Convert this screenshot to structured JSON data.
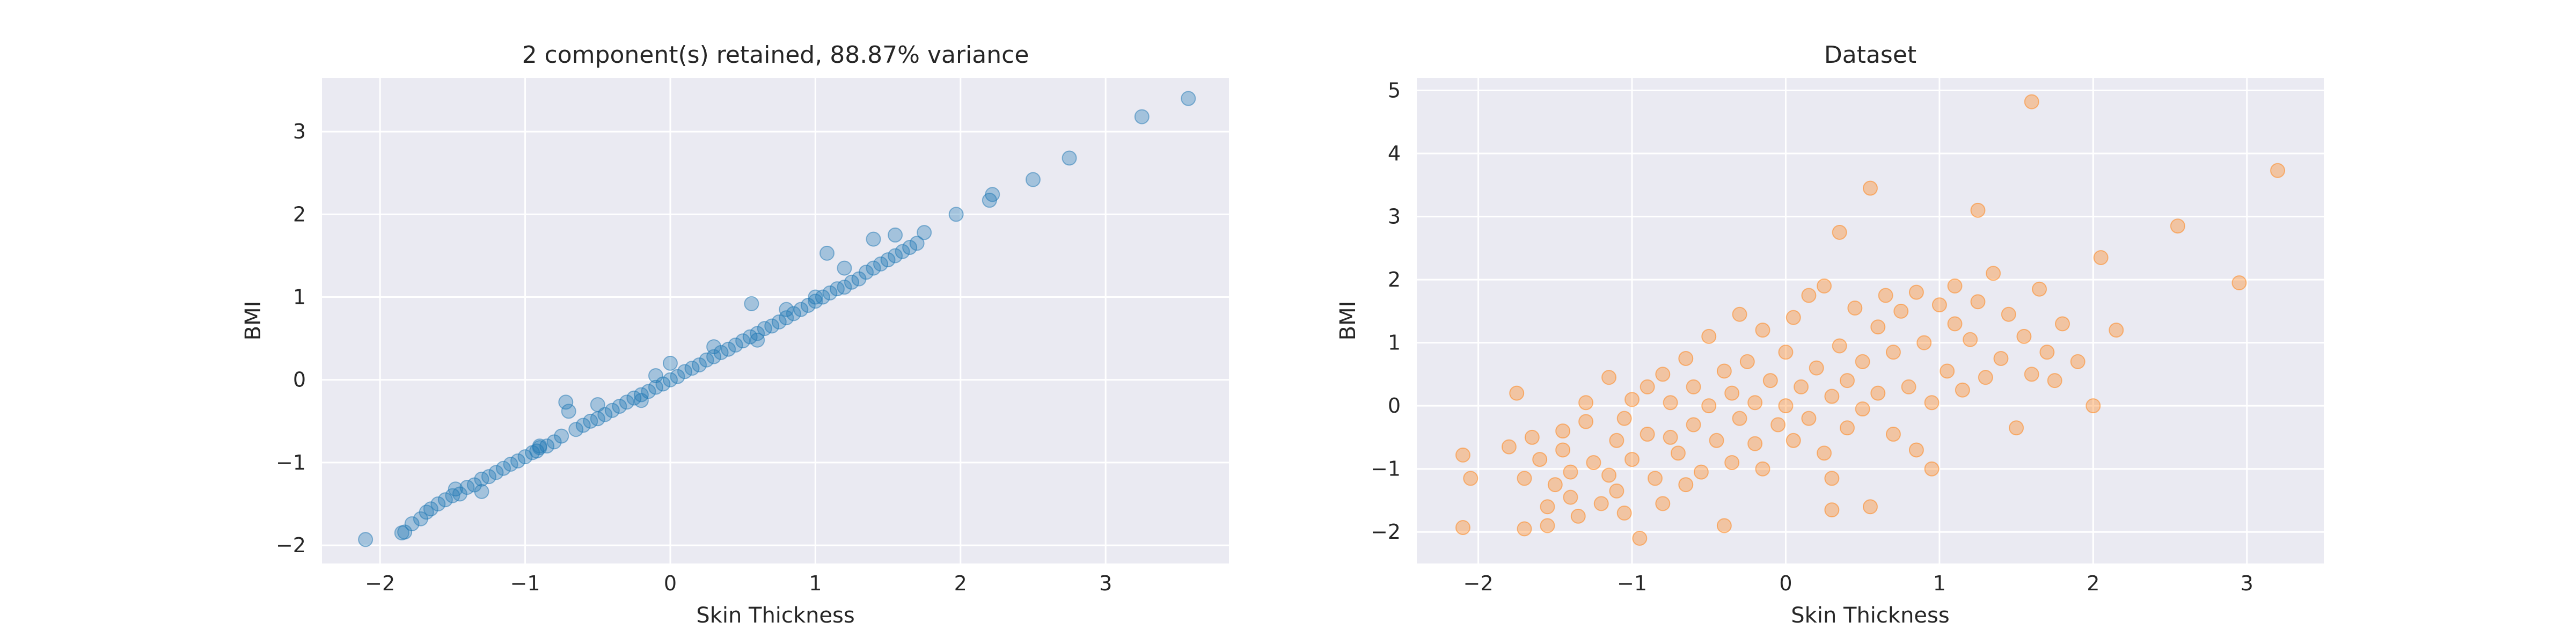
{
  "chart_data": [
    {
      "type": "scatter",
      "title": "2 component(s) retained, 88.87% variance",
      "xlabel": "Skin Thickness",
      "ylabel": "BMI",
      "xlim": [
        -2.4,
        3.85
      ],
      "ylim": [
        -2.22,
        3.65
      ],
      "xticks": [
        -2,
        -1,
        0,
        1,
        2,
        3
      ],
      "yticks": [
        -2,
        -1,
        0,
        1,
        2,
        3
      ],
      "xtick_labels": [
        "−2",
        "−1",
        "0",
        "1",
        "2",
        "3"
      ],
      "ytick_labels": [
        "−2",
        "−1",
        "0",
        "1",
        "2",
        "3"
      ],
      "grid": true,
      "color": "#1f77b4",
      "alpha": 0.35,
      "points": [
        [
          -2.1,
          -1.93
        ],
        [
          -1.85,
          -1.85
        ],
        [
          -1.83,
          -1.84
        ],
        [
          -1.78,
          -1.74
        ],
        [
          -1.72,
          -1.68
        ],
        [
          -1.68,
          -1.6
        ],
        [
          -1.65,
          -1.56
        ],
        [
          -1.6,
          -1.5
        ],
        [
          -1.55,
          -1.45
        ],
        [
          -1.5,
          -1.4
        ],
        [
          -1.48,
          -1.32
        ],
        [
          -1.45,
          -1.38
        ],
        [
          -1.4,
          -1.3
        ],
        [
          -1.35,
          -1.27
        ],
        [
          -1.3,
          -1.2
        ],
        [
          -1.25,
          -1.17
        ],
        [
          -1.2,
          -1.12
        ],
        [
          -1.15,
          -1.07
        ],
        [
          -1.1,
          -1.02
        ],
        [
          -1.05,
          -0.98
        ],
        [
          -1.0,
          -0.93
        ],
        [
          -0.95,
          -0.88
        ],
        [
          -0.92,
          -0.86
        ],
        [
          -0.9,
          -0.8
        ],
        [
          -0.85,
          -0.8
        ],
        [
          -0.8,
          -0.75
        ],
        [
          -0.75,
          -0.68
        ],
        [
          -0.72,
          -0.27
        ],
        [
          -0.7,
          -0.38
        ],
        [
          -0.65,
          -0.6
        ],
        [
          -0.6,
          -0.55
        ],
        [
          -0.55,
          -0.5
        ],
        [
          -0.5,
          -0.47
        ],
        [
          -0.45,
          -0.42
        ],
        [
          -0.4,
          -0.37
        ],
        [
          -0.35,
          -0.32
        ],
        [
          -0.3,
          -0.27
        ],
        [
          -0.25,
          -0.22
        ],
        [
          -0.2,
          -0.18
        ],
        [
          -0.15,
          -0.14
        ],
        [
          -0.1,
          -0.09
        ],
        [
          -0.05,
          -0.05
        ],
        [
          0.0,
          0.0
        ],
        [
          0.0,
          0.2
        ],
        [
          0.05,
          0.04
        ],
        [
          0.1,
          0.1
        ],
        [
          0.15,
          0.14
        ],
        [
          0.2,
          0.18
        ],
        [
          0.25,
          0.24
        ],
        [
          0.3,
          0.28
        ],
        [
          0.35,
          0.33
        ],
        [
          0.4,
          0.37
        ],
        [
          0.45,
          0.42
        ],
        [
          0.5,
          0.47
        ],
        [
          0.55,
          0.52
        ],
        [
          0.6,
          0.56
        ],
        [
          0.65,
          0.62
        ],
        [
          0.7,
          0.65
        ],
        [
          0.75,
          0.7
        ],
        [
          0.8,
          0.75
        ],
        [
          0.85,
          0.8
        ],
        [
          0.9,
          0.85
        ],
        [
          0.95,
          0.9
        ],
        [
          0.56,
          0.92
        ],
        [
          1.0,
          0.95
        ],
        [
          1.05,
          1.0
        ],
        [
          1.1,
          1.05
        ],
        [
          1.15,
          1.1
        ],
        [
          1.2,
          1.12
        ],
        [
          1.25,
          1.18
        ],
        [
          1.3,
          1.22
        ],
        [
          1.35,
          1.3
        ],
        [
          1.4,
          1.35
        ],
        [
          1.45,
          1.4
        ],
        [
          1.5,
          1.45
        ],
        [
          1.55,
          1.5
        ],
        [
          1.6,
          1.55
        ],
        [
          1.65,
          1.6
        ],
        [
          1.7,
          1.65
        ],
        [
          1.75,
          1.78
        ],
        [
          1.2,
          1.35
        ],
        [
          1.08,
          1.53
        ],
        [
          1.4,
          1.7
        ],
        [
          1.55,
          1.75
        ],
        [
          1.97,
          2.0
        ],
        [
          2.2,
          2.17
        ],
        [
          2.22,
          2.24
        ],
        [
          2.5,
          2.42
        ],
        [
          2.75,
          2.68
        ],
        [
          3.25,
          3.18
        ],
        [
          3.57,
          3.4
        ],
        [
          -1.3,
          -1.35
        ],
        [
          -0.9,
          -0.82
        ],
        [
          -0.5,
          -0.3
        ],
        [
          -0.2,
          -0.25
        ],
        [
          0.3,
          0.4
        ],
        [
          0.6,
          0.48
        ],
        [
          0.8,
          0.85
        ],
        [
          1.0,
          1.0
        ],
        [
          -0.1,
          0.05
        ]
      ]
    },
    {
      "type": "scatter",
      "title": "Dataset",
      "xlabel": "Skin Thickness",
      "ylabel": "BMI",
      "xlim": [
        -2.4,
        3.5
      ],
      "ylim": [
        -2.5,
        5.2
      ],
      "xticks": [
        -2,
        -1,
        0,
        1,
        2,
        3
      ],
      "yticks": [
        -2,
        -1,
        0,
        1,
        2,
        3,
        4,
        5
      ],
      "xtick_labels": [
        "−2",
        "−1",
        "0",
        "1",
        "2",
        "3"
      ],
      "ytick_labels": [
        "−2",
        "−1",
        "0",
        "1",
        "2",
        "3",
        "4",
        "5"
      ],
      "grid": true,
      "color": "#ff7f0e",
      "alpha": 0.35,
      "points": [
        [
          -2.1,
          -1.93
        ],
        [
          -2.1,
          -0.78
        ],
        [
          -2.05,
          -1.15
        ],
        [
          -1.8,
          -0.65
        ],
        [
          -1.75,
          0.2
        ],
        [
          -1.7,
          -1.95
        ],
        [
          -1.7,
          -1.15
        ],
        [
          -1.65,
          -0.5
        ],
        [
          -1.6,
          -0.85
        ],
        [
          -1.55,
          -1.6
        ],
        [
          -1.55,
          -1.9
        ],
        [
          -1.5,
          -1.25
        ],
        [
          -1.45,
          -0.4
        ],
        [
          -1.45,
          -0.7
        ],
        [
          -1.4,
          -1.05
        ],
        [
          -1.4,
          -1.45
        ],
        [
          -1.35,
          -1.75
        ],
        [
          -1.3,
          0.05
        ],
        [
          -1.3,
          -0.25
        ],
        [
          -1.25,
          -0.9
        ],
        [
          -1.2,
          -1.55
        ],
        [
          -1.15,
          0.45
        ],
        [
          -1.15,
          -1.1
        ],
        [
          -1.1,
          -0.55
        ],
        [
          -1.1,
          -1.35
        ],
        [
          -1.05,
          -0.2
        ],
        [
          -1.05,
          -1.7
        ],
        [
          -1.0,
          0.1
        ],
        [
          -1.0,
          -0.85
        ],
        [
          -0.95,
          -2.1
        ],
        [
          -0.9,
          0.3
        ],
        [
          -0.9,
          -0.45
        ],
        [
          -0.85,
          -1.15
        ],
        [
          -0.8,
          0.5
        ],
        [
          -0.8,
          -1.55
        ],
        [
          -0.75,
          0.05
        ],
        [
          -0.7,
          -0.75
        ],
        [
          -0.65,
          0.75
        ],
        [
          -0.65,
          -1.25
        ],
        [
          -0.6,
          0.3
        ],
        [
          -0.6,
          -0.3
        ],
        [
          -0.55,
          -1.05
        ],
        [
          -0.5,
          1.1
        ],
        [
          -0.5,
          0.0
        ],
        [
          -0.45,
          -0.55
        ],
        [
          -0.4,
          0.55
        ],
        [
          -0.4,
          -1.9
        ],
        [
          -0.35,
          0.2
        ],
        [
          -0.35,
          -0.9
        ],
        [
          -0.3,
          1.45
        ],
        [
          -0.3,
          -0.2
        ],
        [
          -0.25,
          0.7
        ],
        [
          -0.2,
          0.05
        ],
        [
          -0.2,
          -0.6
        ],
        [
          -0.15,
          1.2
        ],
        [
          -0.15,
          -1.0
        ],
        [
          -0.1,
          0.4
        ],
        [
          -0.05,
          -0.3
        ],
        [
          0.0,
          0.85
        ],
        [
          0.0,
          0.0
        ],
        [
          0.05,
          1.4
        ],
        [
          0.05,
          -0.55
        ],
        [
          0.1,
          0.3
        ],
        [
          0.15,
          1.75
        ],
        [
          0.15,
          -0.2
        ],
        [
          0.2,
          0.6
        ],
        [
          0.25,
          -0.75
        ],
        [
          0.25,
          1.9
        ],
        [
          0.3,
          0.15
        ],
        [
          0.3,
          -1.15
        ],
        [
          0.35,
          2.75
        ],
        [
          0.35,
          0.95
        ],
        [
          0.4,
          0.4
        ],
        [
          0.4,
          -0.35
        ],
        [
          0.45,
          1.55
        ],
        [
          0.5,
          -0.05
        ],
        [
          0.5,
          0.7
        ],
        [
          0.55,
          3.45
        ],
        [
          0.55,
          -1.6
        ],
        [
          0.6,
          1.25
        ],
        [
          0.6,
          0.2
        ],
        [
          0.65,
          1.75
        ],
        [
          0.7,
          -0.45
        ],
        [
          0.7,
          0.85
        ],
        [
          0.75,
          1.5
        ],
        [
          0.8,
          0.3
        ],
        [
          0.85,
          -0.7
        ],
        [
          0.85,
          1.8
        ],
        [
          0.9,
          1.0
        ],
        [
          0.95,
          0.05
        ],
        [
          1.0,
          1.6
        ],
        [
          1.05,
          0.55
        ],
        [
          1.1,
          1.3
        ],
        [
          1.1,
          1.9
        ],
        [
          1.15,
          0.25
        ],
        [
          1.2,
          1.05
        ],
        [
          1.25,
          3.1
        ],
        [
          1.25,
          1.65
        ],
        [
          1.3,
          0.45
        ],
        [
          1.35,
          2.1
        ],
        [
          1.4,
          0.75
        ],
        [
          1.45,
          1.45
        ],
        [
          1.5,
          -0.35
        ],
        [
          1.55,
          1.1
        ],
        [
          1.6,
          4.82
        ],
        [
          1.6,
          0.5
        ],
        [
          1.65,
          1.85
        ],
        [
          1.7,
          0.85
        ],
        [
          1.75,
          0.4
        ],
        [
          1.8,
          1.3
        ],
        [
          1.9,
          0.7
        ],
        [
          2.0,
          0.0
        ],
        [
          2.05,
          2.35
        ],
        [
          2.15,
          1.2
        ],
        [
          2.55,
          2.85
        ],
        [
          2.95,
          1.95
        ],
        [
          3.2,
          3.73
        ],
        [
          0.3,
          -1.65
        ],
        [
          -0.75,
          -0.5
        ],
        [
          0.95,
          -1.0
        ]
      ]
    }
  ]
}
